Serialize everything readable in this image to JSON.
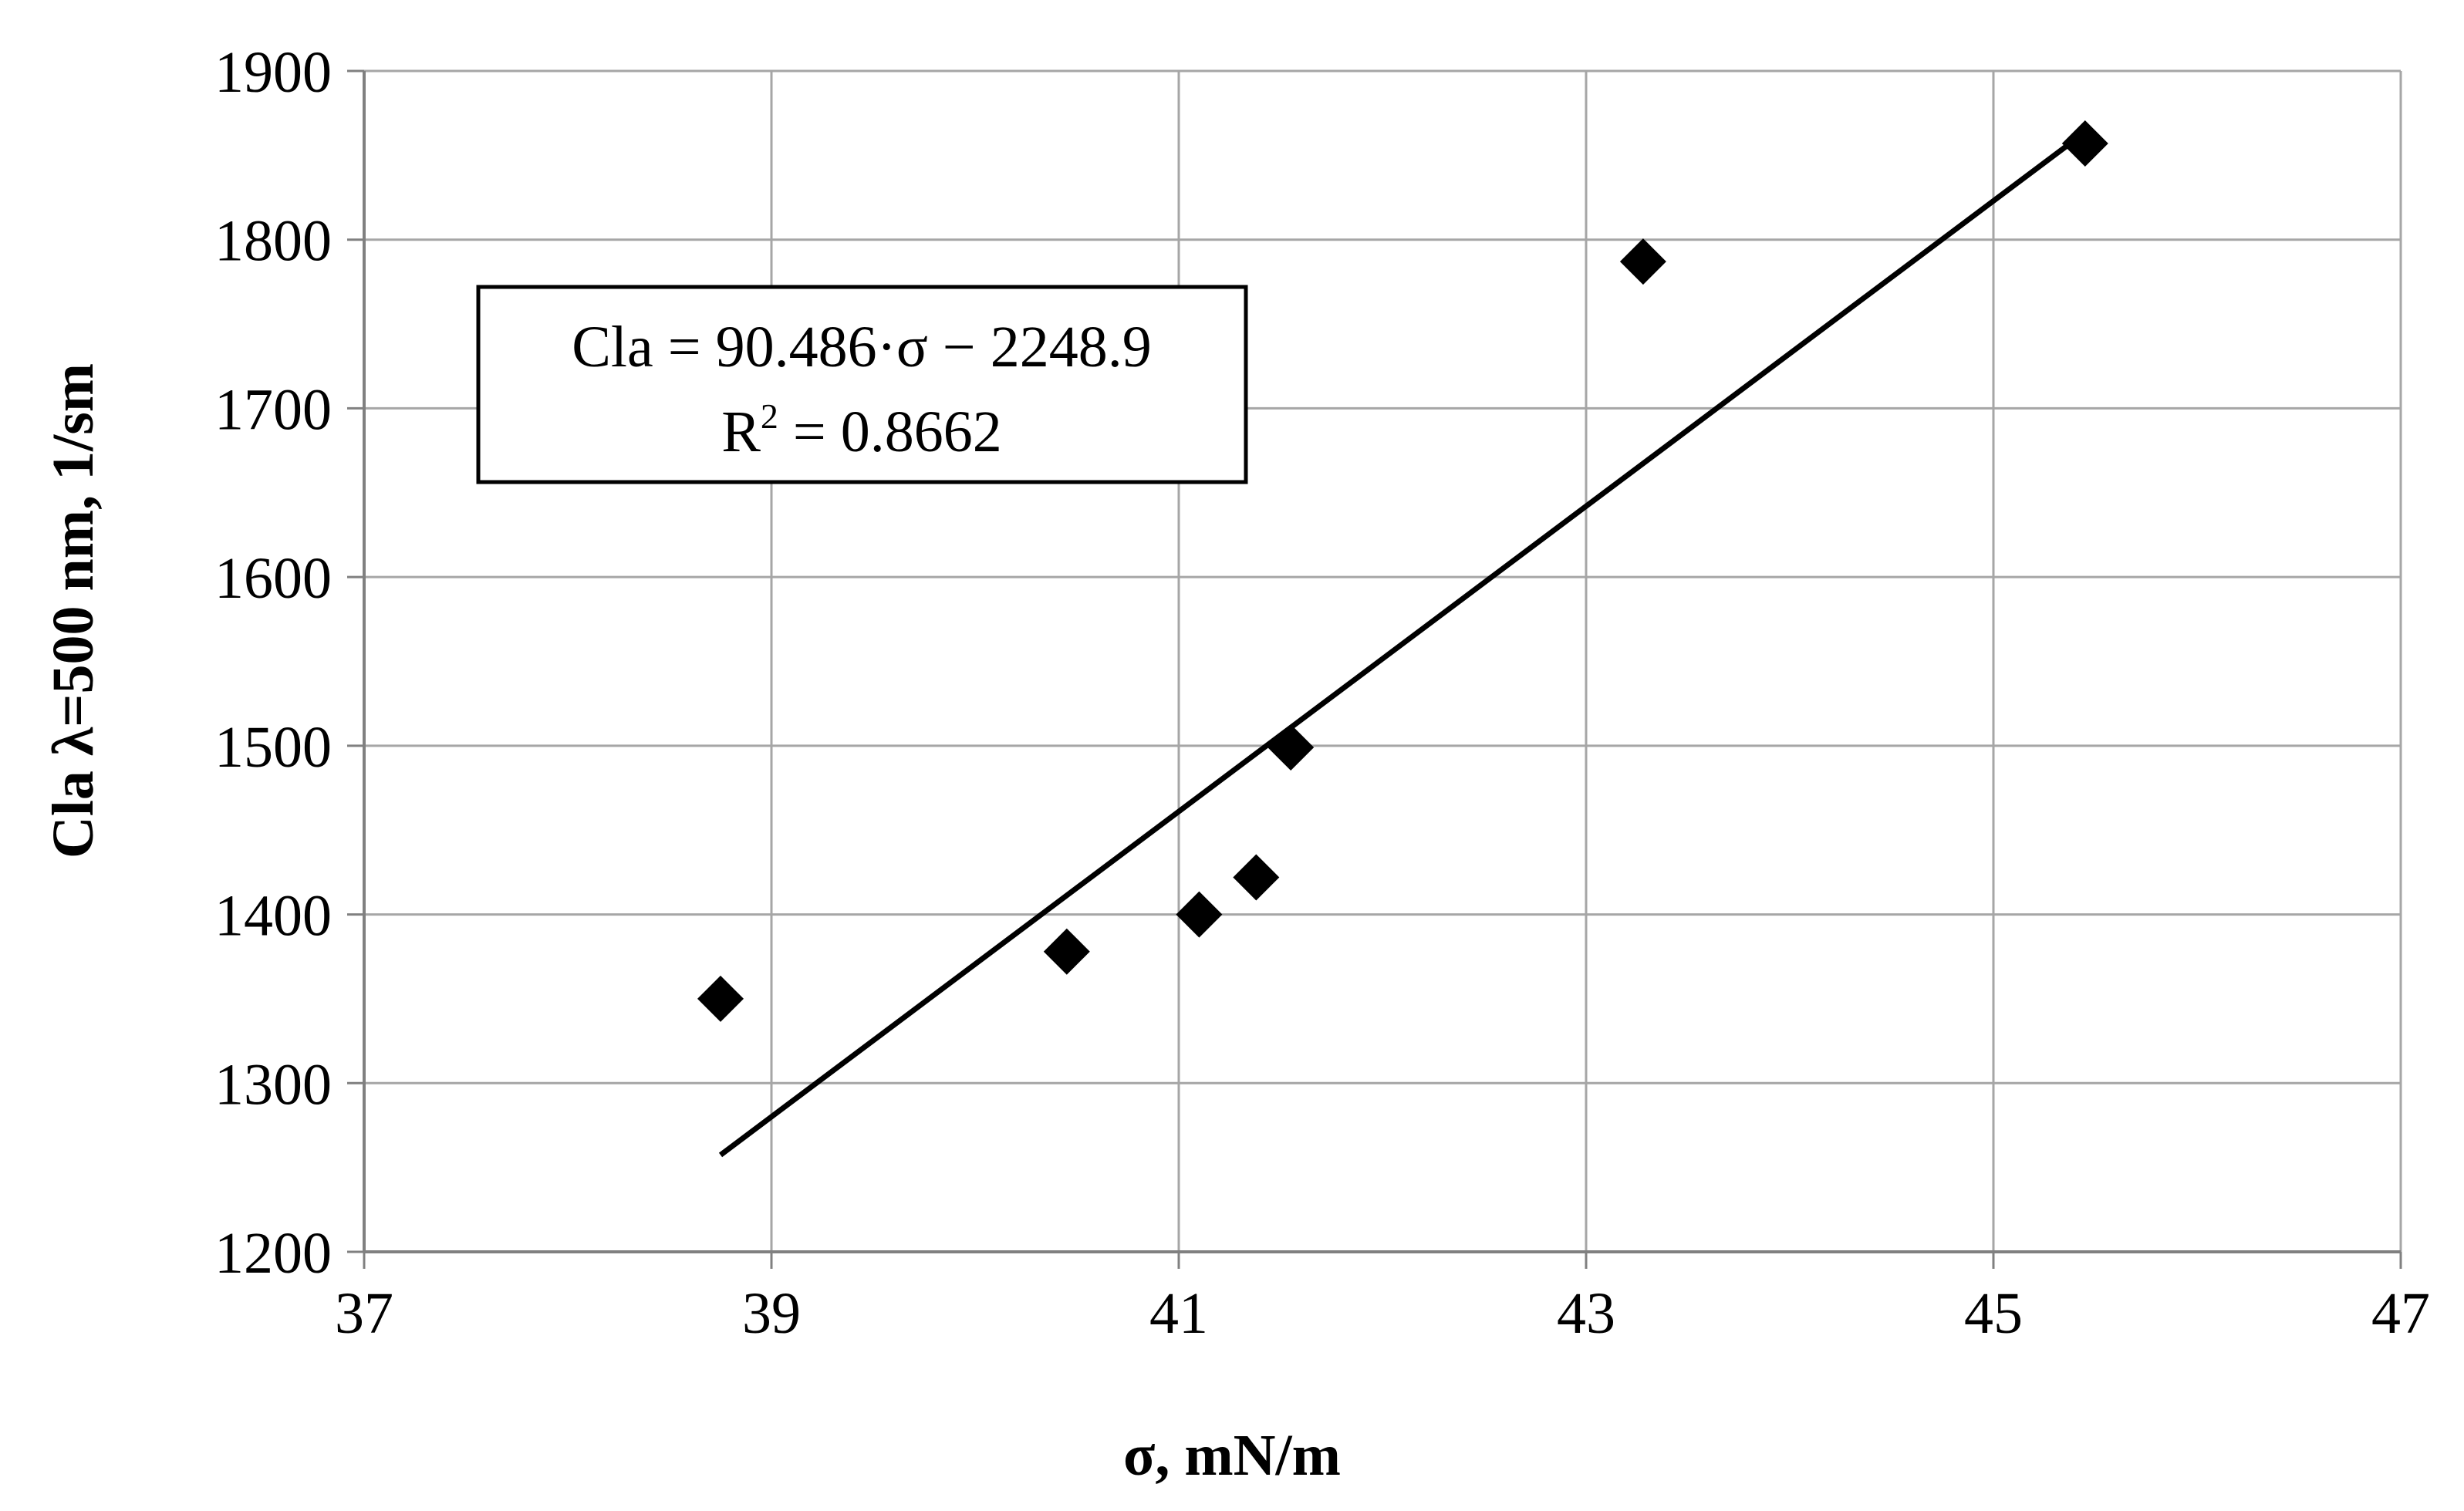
{
  "chart_data": {
    "type": "scatter",
    "title": "",
    "xlabel": "σ, mN/m",
    "ylabel": "Cla λ=500 nm, 1/sm",
    "xlim": [
      37,
      47
    ],
    "ylim": [
      1200,
      1900
    ],
    "x_ticks": [
      "37",
      "39",
      "41",
      "43",
      "45",
      "47"
    ],
    "y_ticks": [
      "1200",
      "1300",
      "1400",
      "1500",
      "1600",
      "1700",
      "1800",
      "1900"
    ],
    "grid": true,
    "marker": "diamond",
    "marker_color": "#000000",
    "series": [
      {
        "points": [
          {
            "x": 38.75,
            "y": 1350
          },
          {
            "x": 40.45,
            "y": 1378
          },
          {
            "x": 41.1,
            "y": 1400
          },
          {
            "x": 41.38,
            "y": 1422
          },
          {
            "x": 41.55,
            "y": 1499
          },
          {
            "x": 43.28,
            "y": 1787
          },
          {
            "x": 45.45,
            "y": 1857
          }
        ]
      }
    ],
    "trendline": {
      "type": "linear",
      "slope": 90.486,
      "intercept": -2248.9,
      "x_start": 38.75,
      "x_end": 45.45,
      "color": "#000000"
    },
    "annotation": {
      "equation": "Cla = 90.486·σ  − 2248.9",
      "r2_prefix": "R",
      "r2_sup": "2",
      "r2_value": " = 0.8662"
    }
  }
}
